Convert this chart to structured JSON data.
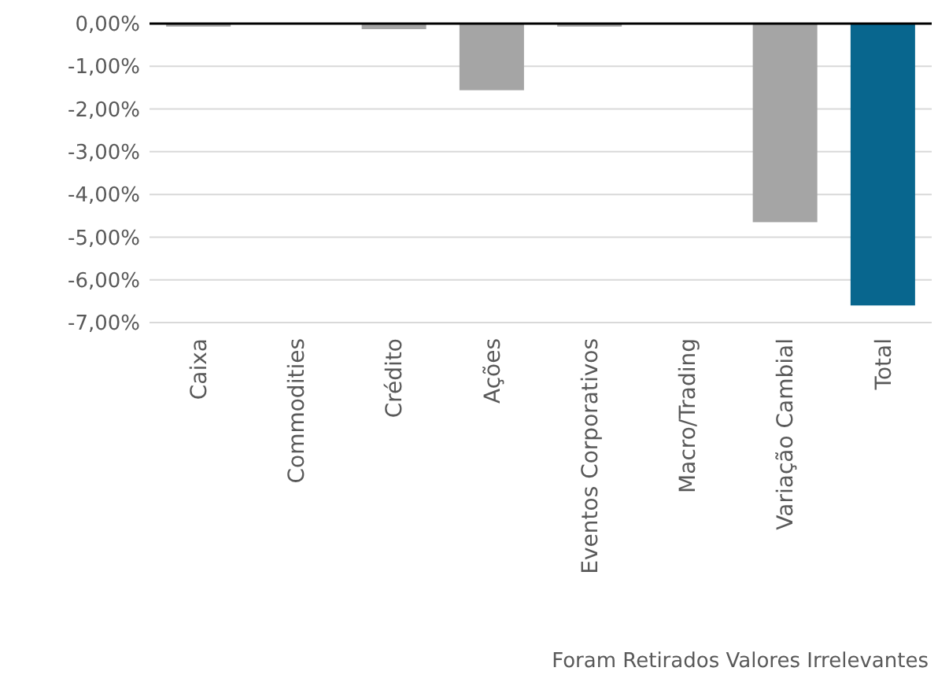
{
  "chart_data": {
    "type": "bar",
    "categories": [
      "Caixa",
      "Commodities",
      "Crédito",
      "Ações",
      "Eventos Corporativos",
      "Macro/Trading",
      "Variação Cambial",
      "Total"
    ],
    "values": [
      -0.07,
      0,
      -0.13,
      -1.56,
      -0.07,
      0,
      -4.65,
      -6.6
    ],
    "colors": [
      "#a5a5a5",
      "#a5a5a5",
      "#a5a5a5",
      "#a5a5a5",
      "#a5a5a5",
      "#a5a5a5",
      "#a5a5a5",
      "#08668e"
    ],
    "ylim": [
      -7,
      0
    ],
    "yticks": [
      {
        "value": 0,
        "label": "0,00%"
      },
      {
        "value": -1,
        "label": "-1,00%"
      },
      {
        "value": -2,
        "label": "-2,00%"
      },
      {
        "value": -3,
        "label": "-3,00%"
      },
      {
        "value": -4,
        "label": "-4,00%"
      },
      {
        "value": -5,
        "label": "-5,00%"
      },
      {
        "value": -6,
        "label": "-6,00%"
      },
      {
        "value": -7,
        "label": "-7,00%"
      }
    ],
    "grid": "y",
    "annotations": [
      "Foram Retirados Valores Irrelevantes"
    ]
  }
}
